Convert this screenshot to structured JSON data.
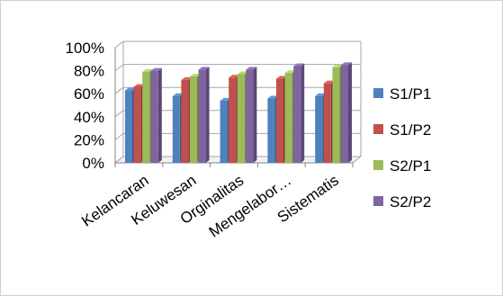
{
  "chart_data": {
    "type": "bar",
    "style": "3d-clustered-column",
    "categories": [
      "Kelancaran",
      "Keluwesan",
      "Orginalitas",
      "Mengelabor…",
      "Sistematis"
    ],
    "series": [
      {
        "name": "S1/P1",
        "color": "#4f81bd",
        "values": [
          0.63,
          0.58,
          0.54,
          0.56,
          0.58
        ]
      },
      {
        "name": "S1/P2",
        "color": "#c0504d",
        "values": [
          0.66,
          0.72,
          0.74,
          0.73,
          0.69
        ]
      },
      {
        "name": "S2/P1",
        "color": "#9bbb59",
        "values": [
          0.79,
          0.75,
          0.77,
          0.78,
          0.83
        ]
      },
      {
        "name": "S2/P2",
        "color": "#8064a2",
        "values": [
          0.8,
          0.81,
          0.81,
          0.84,
          0.85
        ]
      }
    ],
    "yticks": [
      "0%",
      "20%",
      "40%",
      "60%",
      "80%",
      "100%"
    ],
    "ylim": [
      0,
      1
    ],
    "grid": true,
    "legend_position": "right"
  }
}
